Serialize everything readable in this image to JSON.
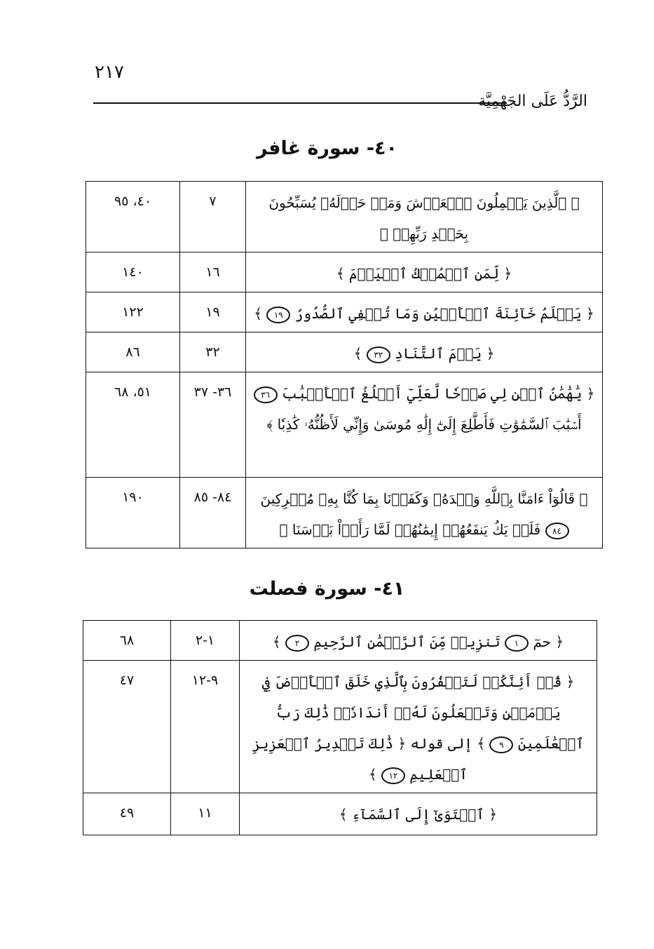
{
  "page_number": "٢١٧",
  "running_head": "الرَّدُّ عَلَى الجَهْمِيَّة",
  "sections": [
    {
      "title": "٤٠- سورة غافر",
      "rows": [
        {
          "verse": "﴿ ٱلَّذِينَ يَحۡمِلُونَ ٱلۡعَرۡشَ وَمَنۡ حَوۡلَهُۥ يُسَبِّحُونَ بِحَمۡدِ رَبِّهِمۡ ﴾",
          "ayah": "٧",
          "pages": "٤٠، ٩٥"
        },
        {
          "verse": "﴿ لِّمَنِ ٱلۡمُلۡكُ ٱلۡيَوۡمَ ﴾",
          "ayah": "١٦",
          "pages": "١٤٠"
        },
        {
          "verse": "﴿ يَعۡلَمُ خَآئِنَةَ ٱلۡأَعۡيُنِ وَمَا تُخۡفِي ٱلصُّدُورُ",
          "marks": [
            "١٩"
          ],
          "end": "﴾",
          "ayah": "١٩",
          "pages": "١٢٢"
        },
        {
          "verse": "﴿ يَوۡمَ ٱلتَّنَادِ",
          "marks": [
            "٣٢"
          ],
          "end": "﴾",
          "ayah": "٣٢",
          "pages": "٨٦"
        },
        {
          "verse": "﴿ يَٰهَٰمَٰنُ ٱبۡنِ لِي صَرۡحٗا لَّعَلِّيٓ أَبۡلُغُ ٱلۡأَسۡبَٰبَ",
          "marks": [
            "٣٦"
          ],
          "end": "أَسۡبَٰبَ ٱلسَّمَٰوَٰتِ فَأَطَّلِعَ إِلَىٰٓ إِلَٰهِ مُوسَىٰ وَإِنِّي لَأَظُنُّهُۥ كَٰذِبٗا ﴾",
          "ayah": "٣٦- ٣٧",
          "pages": "٥١، ٦٨"
        },
        {
          "verse": "﴿ قَالُوٓاْ ءَامَنَّا بِٱللَّهِ وَحۡدَهُۥ وَكَفَرۡنَا بِمَا كُنَّا بِهِۦ مُشۡرِكِينَ",
          "marks": [
            "٨٤"
          ],
          "end": "فَلَمۡ يَكُ يَنفَعُهُمۡ إِيمَٰنُهُمۡ لَمَّا رَأَوۡاْ بَأۡسَنَا ﴾",
          "ayah": "٨٤- ٨٥",
          "pages": "١٩٠"
        }
      ]
    },
    {
      "title": "٤١- سورة فصلت",
      "rows": [
        {
          "verse": "﴿ حمٓ",
          "marks": [
            "١"
          ],
          "end": "تَنزِيلٞ مِّنَ ٱلرَّحۡمَٰنِ ٱلرَّحِيمِ",
          "mark2": "٢",
          "end2": "﴾",
          "ayah": "١-٢",
          "pages": "٦٨"
        },
        {
          "verse": "﴿ قُلۡ أَئِنَّكُمۡ لَتَكۡفُرُونَ بِٱلَّذِي خَلَقَ ٱلۡأَرۡضَ فِي يَوۡمَيۡنِ وَتَجۡعَلُونَ لَهُۥٓ أَندَادٗاۚ ذَٰلِكَ رَبُّ ٱلۡعَٰلَمِينَ",
          "marks": [
            "٩"
          ],
          "end": "﴾ إلى قوله ﴿ ذَٰلِكَ تَقۡدِيرُ ٱلۡعَزِيزِ ٱلۡعَلِيمِ",
          "mark2": "١٢",
          "end2": "﴾",
          "ayah": "٩-١٢",
          "pages": "٤٧"
        },
        {
          "verse": "﴿ ٱسۡتَوَىٰٓ إِلَى ٱلسَّمَآءِ ﴾",
          "ayah": "١١",
          "pages": "٤٩"
        }
      ]
    }
  ]
}
